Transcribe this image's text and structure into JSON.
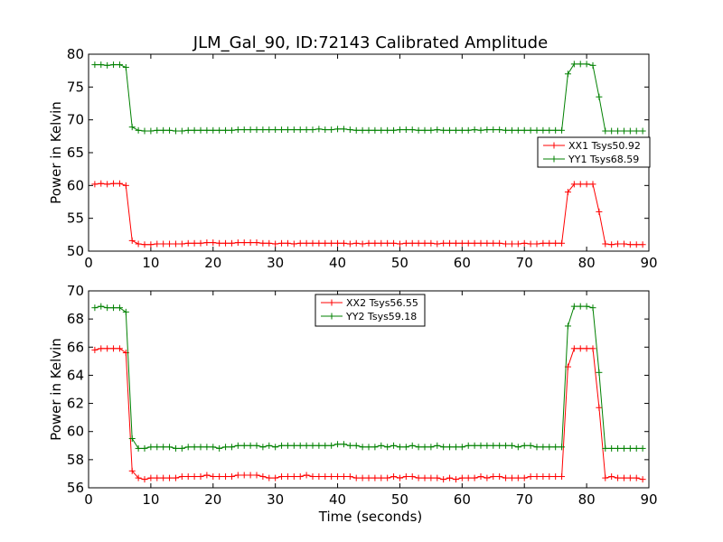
{
  "figure": {
    "title": "JLM_Gal_90, ID:72143 Calibrated Amplitude",
    "xlabel": "Time (seconds)"
  },
  "colors": {
    "red": "#ff0000",
    "green": "#008000"
  },
  "chart_data": [
    {
      "type": "line",
      "ylabel": "Power in Kelvin",
      "xlim": [
        0,
        90
      ],
      "ylim": [
        50,
        80
      ],
      "xticks": [
        0,
        10,
        20,
        30,
        40,
        50,
        60,
        70,
        80,
        90
      ],
      "yticks": [
        50,
        55,
        60,
        65,
        70,
        75,
        80
      ],
      "grid": false,
      "legend_position": "center-right",
      "series": [
        {
          "name": "XX1 Tsys50.92",
          "color": "red",
          "x": [
            1,
            2,
            3,
            4,
            5,
            6,
            7,
            8,
            9,
            10,
            11,
            12,
            13,
            14,
            15,
            16,
            17,
            18,
            19,
            20,
            21,
            22,
            23,
            24,
            25,
            26,
            27,
            28,
            29,
            30,
            31,
            32,
            33,
            34,
            35,
            36,
            37,
            38,
            39,
            40,
            41,
            42,
            43,
            44,
            45,
            46,
            47,
            48,
            49,
            50,
            51,
            52,
            53,
            54,
            55,
            56,
            57,
            58,
            59,
            60,
            61,
            62,
            63,
            64,
            65,
            66,
            67,
            68,
            69,
            70,
            71,
            72,
            73,
            74,
            75,
            76,
            77,
            78,
            79,
            80,
            81,
            82,
            83,
            84,
            85,
            86,
            87,
            88,
            89
          ],
          "y": [
            60.2,
            60.3,
            60.2,
            60.3,
            60.3,
            60.0,
            51.6,
            51.1,
            51.0,
            51.0,
            51.1,
            51.1,
            51.1,
            51.1,
            51.1,
            51.2,
            51.2,
            51.2,
            51.3,
            51.3,
            51.2,
            51.2,
            51.2,
            51.3,
            51.3,
            51.3,
            51.3,
            51.2,
            51.2,
            51.1,
            51.2,
            51.2,
            51.1,
            51.2,
            51.2,
            51.2,
            51.2,
            51.2,
            51.2,
            51.2,
            51.2,
            51.1,
            51.2,
            51.1,
            51.2,
            51.2,
            51.2,
            51.2,
            51.2,
            51.1,
            51.2,
            51.2,
            51.2,
            51.2,
            51.2,
            51.1,
            51.2,
            51.2,
            51.2,
            51.2,
            51.2,
            51.2,
            51.2,
            51.2,
            51.2,
            51.2,
            51.1,
            51.1,
            51.1,
            51.2,
            51.1,
            51.1,
            51.2,
            51.2,
            51.2,
            51.2,
            59.0,
            60.2,
            60.2,
            60.2,
            60.2,
            56.0,
            51.1,
            51.0,
            51.1,
            51.1,
            51.0,
            51.0,
            51.0
          ]
        },
        {
          "name": "YY1 Tsys68.59",
          "color": "green",
          "x": [
            1,
            2,
            3,
            4,
            5,
            6,
            7,
            8,
            9,
            10,
            11,
            12,
            13,
            14,
            15,
            16,
            17,
            18,
            19,
            20,
            21,
            22,
            23,
            24,
            25,
            26,
            27,
            28,
            29,
            30,
            31,
            32,
            33,
            34,
            35,
            36,
            37,
            38,
            39,
            40,
            41,
            42,
            43,
            44,
            45,
            46,
            47,
            48,
            49,
            50,
            51,
            52,
            53,
            54,
            55,
            56,
            57,
            58,
            59,
            60,
            61,
            62,
            63,
            64,
            65,
            66,
            67,
            68,
            69,
            70,
            71,
            72,
            73,
            74,
            75,
            76,
            77,
            78,
            79,
            80,
            81,
            82,
            83,
            84,
            85,
            86,
            87,
            88,
            89
          ],
          "y": [
            78.4,
            78.4,
            78.3,
            78.4,
            78.4,
            78.0,
            68.9,
            68.4,
            68.3,
            68.3,
            68.4,
            68.4,
            68.4,
            68.3,
            68.3,
            68.4,
            68.4,
            68.4,
            68.4,
            68.4,
            68.4,
            68.4,
            68.4,
            68.5,
            68.5,
            68.5,
            68.5,
            68.5,
            68.5,
            68.5,
            68.5,
            68.5,
            68.5,
            68.5,
            68.5,
            68.5,
            68.6,
            68.5,
            68.5,
            68.6,
            68.6,
            68.5,
            68.4,
            68.4,
            68.4,
            68.4,
            68.4,
            68.4,
            68.4,
            68.5,
            68.5,
            68.5,
            68.4,
            68.4,
            68.4,
            68.5,
            68.4,
            68.4,
            68.4,
            68.4,
            68.4,
            68.5,
            68.4,
            68.5,
            68.5,
            68.5,
            68.4,
            68.4,
            68.4,
            68.4,
            68.4,
            68.4,
            68.4,
            68.4,
            68.4,
            68.4,
            77.0,
            78.5,
            78.5,
            78.5,
            78.3,
            73.5,
            68.3,
            68.3,
            68.3,
            68.3,
            68.3,
            68.3,
            68.3
          ]
        }
      ]
    },
    {
      "type": "line",
      "ylabel": "Power in Kelvin",
      "xlim": [
        0,
        90
      ],
      "ylim": [
        56,
        70
      ],
      "xticks": [
        0,
        10,
        20,
        30,
        40,
        50,
        60,
        70,
        80,
        90
      ],
      "yticks": [
        56,
        58,
        60,
        62,
        64,
        66,
        68,
        70
      ],
      "grid": false,
      "legend_position": "top-center",
      "series": [
        {
          "name": "XX2 Tsys56.55",
          "color": "red",
          "x": [
            1,
            2,
            3,
            4,
            5,
            6,
            7,
            8,
            9,
            10,
            11,
            12,
            13,
            14,
            15,
            16,
            17,
            18,
            19,
            20,
            21,
            22,
            23,
            24,
            25,
            26,
            27,
            28,
            29,
            30,
            31,
            32,
            33,
            34,
            35,
            36,
            37,
            38,
            39,
            40,
            41,
            42,
            43,
            44,
            45,
            46,
            47,
            48,
            49,
            50,
            51,
            52,
            53,
            54,
            55,
            56,
            57,
            58,
            59,
            60,
            61,
            62,
            63,
            64,
            65,
            66,
            67,
            68,
            69,
            70,
            71,
            72,
            73,
            74,
            75,
            76,
            77,
            78,
            79,
            80,
            81,
            82,
            83,
            84,
            85,
            86,
            87,
            88,
            89
          ],
          "y": [
            65.8,
            65.9,
            65.9,
            65.9,
            65.9,
            65.6,
            57.2,
            56.7,
            56.6,
            56.7,
            56.7,
            56.7,
            56.7,
            56.7,
            56.8,
            56.8,
            56.8,
            56.8,
            56.9,
            56.8,
            56.8,
            56.8,
            56.8,
            56.9,
            56.9,
            56.9,
            56.9,
            56.8,
            56.7,
            56.7,
            56.8,
            56.8,
            56.8,
            56.8,
            56.9,
            56.8,
            56.8,
            56.8,
            56.8,
            56.8,
            56.8,
            56.8,
            56.7,
            56.7,
            56.7,
            56.7,
            56.7,
            56.7,
            56.8,
            56.7,
            56.8,
            56.8,
            56.7,
            56.7,
            56.7,
            56.7,
            56.6,
            56.7,
            56.6,
            56.7,
            56.7,
            56.7,
            56.8,
            56.7,
            56.8,
            56.8,
            56.7,
            56.7,
            56.7,
            56.7,
            56.8,
            56.8,
            56.8,
            56.8,
            56.8,
            56.8,
            64.6,
            65.9,
            65.9,
            65.9,
            65.9,
            61.7,
            56.7,
            56.8,
            56.7,
            56.7,
            56.7,
            56.7,
            56.6
          ]
        },
        {
          "name": "YY2 Tsys59.18",
          "color": "green",
          "x": [
            1,
            2,
            3,
            4,
            5,
            6,
            7,
            8,
            9,
            10,
            11,
            12,
            13,
            14,
            15,
            16,
            17,
            18,
            19,
            20,
            21,
            22,
            23,
            24,
            25,
            26,
            27,
            28,
            29,
            30,
            31,
            32,
            33,
            34,
            35,
            36,
            37,
            38,
            39,
            40,
            41,
            42,
            43,
            44,
            45,
            46,
            47,
            48,
            49,
            50,
            51,
            52,
            53,
            54,
            55,
            56,
            57,
            58,
            59,
            60,
            61,
            62,
            63,
            64,
            65,
            66,
            67,
            68,
            69,
            70,
            71,
            72,
            73,
            74,
            75,
            76,
            77,
            78,
            79,
            80,
            81,
            82,
            83,
            84,
            85,
            86,
            87,
            88,
            89
          ],
          "y": [
            68.8,
            68.9,
            68.8,
            68.8,
            68.8,
            68.5,
            59.5,
            58.8,
            58.8,
            58.9,
            58.9,
            58.9,
            58.9,
            58.8,
            58.8,
            58.9,
            58.9,
            58.9,
            58.9,
            58.9,
            58.8,
            58.9,
            58.9,
            59.0,
            59.0,
            59.0,
            59.0,
            58.9,
            59.0,
            58.9,
            59.0,
            59.0,
            59.0,
            59.0,
            59.0,
            59.0,
            59.0,
            59.0,
            59.0,
            59.1,
            59.1,
            59.0,
            59.0,
            58.9,
            58.9,
            58.9,
            59.0,
            58.9,
            59.0,
            58.9,
            58.9,
            59.0,
            58.9,
            58.9,
            58.9,
            59.0,
            58.9,
            58.9,
            58.9,
            58.9,
            59.0,
            59.0,
            59.0,
            59.0,
            59.0,
            59.0,
            59.0,
            59.0,
            58.9,
            59.0,
            59.0,
            58.9,
            58.9,
            58.9,
            58.9,
            58.9,
            67.5,
            68.9,
            68.9,
            68.9,
            68.8,
            64.2,
            58.8,
            58.8,
            58.8,
            58.8,
            58.8,
            58.8,
            58.8
          ]
        }
      ]
    }
  ]
}
